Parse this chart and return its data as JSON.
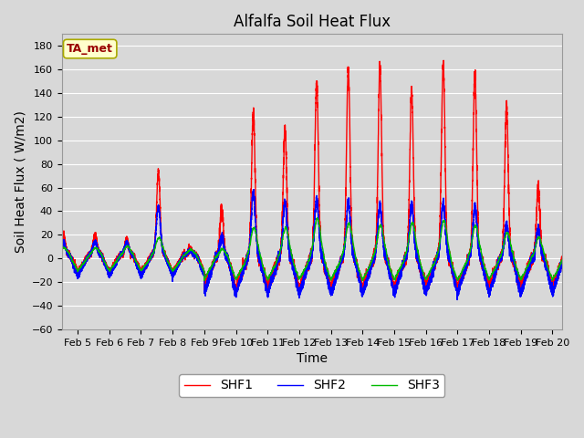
{
  "title": "Alfalfa Soil Heat Flux",
  "xlabel": "Time",
  "ylabel": "Soil Heat Flux ( W/m2)",
  "ylim": [
    -60,
    190
  ],
  "xlim_days": [
    4.5,
    20.3
  ],
  "yticks": [
    -60,
    -40,
    -20,
    0,
    20,
    40,
    60,
    80,
    100,
    120,
    140,
    160,
    180
  ],
  "xtick_labels": [
    "Feb 5",
    "Feb 6",
    "Feb 7",
    "Feb 8",
    "Feb 9",
    "Feb 10",
    "Feb 11",
    "Feb 12",
    "Feb 13",
    "Feb 14",
    "Feb 15",
    "Feb 16",
    "Feb 17",
    "Feb 18",
    "Feb 19",
    "Feb 20"
  ],
  "xtick_positions": [
    5,
    6,
    7,
    8,
    9,
    10,
    11,
    12,
    13,
    14,
    15,
    16,
    17,
    18,
    19,
    20
  ],
  "shf1_color": "#ff0000",
  "shf2_color": "#0000ff",
  "shf3_color": "#00bb00",
  "legend_labels": [
    "SHF1",
    "SHF2",
    "SHF3"
  ],
  "annotation_text": "TA_met",
  "annotation_color": "#990000",
  "annotation_bg": "#ffffcc",
  "annotation_border": "#aaaa00",
  "fig_bg": "#d8d8d8",
  "plot_bg": "#d8d8d8",
  "grid_color": "#ffffff",
  "title_fontsize": 12,
  "axis_label_fontsize": 10,
  "tick_fontsize": 8,
  "legend_fontsize": 10,
  "linewidth": 1.0
}
